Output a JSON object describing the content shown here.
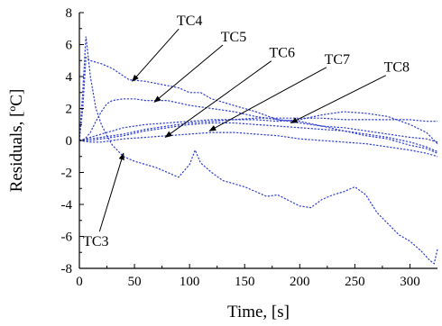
{
  "chart_data": {
    "type": "line",
    "title": "",
    "xlabel": "Time, [s]",
    "ylabel": "Residuals, [ºC]",
    "xlim": [
      0,
      325
    ],
    "ylim": [
      -8,
      8
    ],
    "x_ticks": [
      0,
      50,
      100,
      150,
      200,
      250,
      300
    ],
    "y_ticks": [
      8,
      6,
      4,
      2,
      0,
      -2,
      -4,
      -6,
      -8
    ],
    "grid": false,
    "legend": "none",
    "line_color": "#2f3fd0",
    "series": [
      {
        "name": "TC3",
        "x": [
          0,
          3,
          6,
          10,
          15,
          20,
          25,
          30,
          40,
          50,
          60,
          70,
          80,
          90,
          100,
          105,
          110,
          120,
          130,
          150,
          170,
          180,
          200,
          210,
          220,
          230,
          240,
          250,
          260,
          270,
          280,
          290,
          300,
          310,
          318,
          322,
          325
        ],
        "y": [
          0,
          3,
          6.5,
          4,
          2,
          1,
          0.3,
          -0.3,
          -1,
          -1.3,
          -1.5,
          -1.7,
          -2,
          -2.3,
          -1.5,
          -0.6,
          -1.4,
          -2,
          -2.5,
          -2.9,
          -3.5,
          -3.4,
          -4.1,
          -4.2,
          -3.7,
          -3.4,
          -3.2,
          -2.9,
          -3.4,
          -4.5,
          -5.2,
          -5.9,
          -6.3,
          -6.9,
          -7.5,
          -7.7,
          -6.8
        ]
      },
      {
        "name": "TC4",
        "x": [
          0,
          3,
          6,
          10,
          20,
          30,
          45,
          60,
          75,
          90,
          100,
          110,
          120,
          140,
          160,
          180,
          200,
          220,
          240,
          260,
          280,
          300,
          315,
          325
        ],
        "y": [
          0,
          2,
          5.2,
          5,
          4.8,
          4.5,
          3.8,
          3.7,
          3.5,
          3.3,
          3.0,
          3.0,
          2.6,
          2.2,
          1.8,
          1.3,
          1.2,
          0.9,
          0.6,
          0.3,
          0.1,
          -0.3,
          -0.5,
          -0.8
        ]
      },
      {
        "name": "TC5",
        "x": [
          0,
          5,
          10,
          15,
          20,
          25,
          30,
          40,
          50,
          60,
          70,
          80,
          100,
          120,
          140,
          160,
          180,
          200,
          220,
          240,
          260,
          280,
          300,
          315,
          325
        ],
        "y": [
          0,
          0.1,
          0.5,
          1.2,
          1.8,
          2.3,
          2.5,
          2.6,
          2.6,
          2.5,
          2.5,
          2.5,
          2.2,
          2.0,
          1.8,
          1.5,
          1.3,
          1.1,
          0.9,
          0.8,
          0.6,
          0.4,
          0.2,
          0.1,
          -0.1
        ]
      },
      {
        "name": "TC6",
        "x": [
          0,
          10,
          20,
          30,
          40,
          60,
          80,
          100,
          120,
          140,
          160,
          180,
          200,
          220,
          240,
          260,
          280,
          300,
          315,
          325
        ],
        "y": [
          0,
          -0.1,
          -0.1,
          0,
          0.1,
          0.2,
          0.3,
          0.4,
          0.5,
          0.5,
          0.4,
          0.3,
          0.1,
          0,
          -0.1,
          -0.2,
          -0.4,
          -0.6,
          -0.8,
          -1.0
        ]
      },
      {
        "name": "TC7",
        "x": [
          0,
          10,
          20,
          40,
          60,
          80,
          100,
          120,
          140,
          160,
          180,
          200,
          220,
          240,
          260,
          280,
          300,
          315,
          325
        ],
        "y": [
          0,
          0,
          0.1,
          0.3,
          0.6,
          0.8,
          1.0,
          1.1,
          1.1,
          1.0,
          0.9,
          0.8,
          0.7,
          0.6,
          0.4,
          0.2,
          -0.1,
          -0.4,
          -0.7
        ]
      },
      {
        "name": "TC8",
        "x": [
          0,
          10,
          20,
          40,
          60,
          80,
          100,
          120,
          140,
          160,
          180,
          200,
          220,
          240,
          260,
          280,
          300,
          315,
          325
        ],
        "y": [
          0,
          0.1,
          0.2,
          0.4,
          0.7,
          0.9,
          1.1,
          1.2,
          1.3,
          1.3,
          1.2,
          1.3,
          1.6,
          1.8,
          1.7,
          1.5,
          1.0,
          0.5,
          -0.2
        ]
      },
      {
        "name": "",
        "x": [
          0,
          10,
          20,
          40,
          60,
          80,
          100,
          120,
          140,
          160,
          180,
          200,
          220,
          240,
          260,
          280,
          300,
          315,
          325
        ],
        "y": [
          0,
          0.2,
          0.4,
          0.8,
          1.0,
          1.1,
          1.2,
          1.3,
          1.3,
          1.4,
          1.4,
          1.4,
          1.4,
          1.3,
          1.3,
          1.3,
          1.3,
          1.2,
          1.2
        ]
      }
    ],
    "annotations": [
      {
        "label": "TC3",
        "label_xy": [
          15,
          -6.6
        ],
        "arrow_to": [
          40,
          -0.8
        ]
      },
      {
        "label": "TC4",
        "label_xy": [
          100,
          7.2
        ],
        "arrow_to": [
          48,
          3.7
        ]
      },
      {
        "label": "TC5",
        "label_xy": [
          140,
          6.2
        ],
        "arrow_to": [
          68,
          2.4
        ]
      },
      {
        "label": "TC6",
        "label_xy": [
          184,
          5.2
        ],
        "arrow_to": [
          78,
          0.2
        ]
      },
      {
        "label": "TC7",
        "label_xy": [
          234,
          4.8
        ],
        "arrow_to": [
          118,
          0.6
        ]
      },
      {
        "label": "TC8",
        "label_xy": [
          288,
          4.3
        ],
        "arrow_to": [
          192,
          1.1
        ]
      }
    ]
  }
}
